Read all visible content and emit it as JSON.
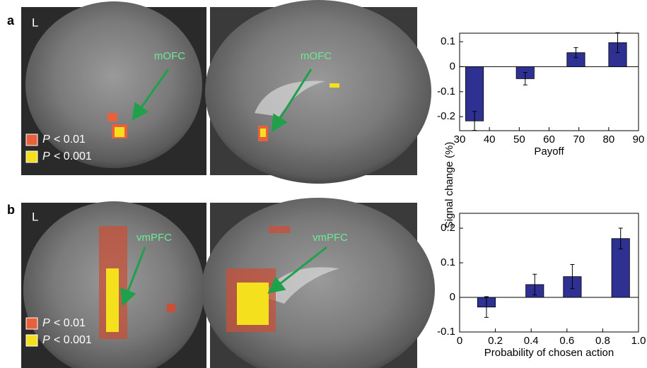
{
  "panels": [
    {
      "label": "a",
      "side": "L",
      "region": "mOFC",
      "legend": [
        {
          "symbol": "P",
          "text": "< 0.01",
          "color": "#e8603c"
        },
        {
          "symbol": "P",
          "text": "< 0.001",
          "color": "#f4e01c"
        }
      ]
    },
    {
      "label": "b",
      "side": "L",
      "region": "vmPFC",
      "legend": [
        {
          "symbol": "P",
          "text": "< 0.01",
          "color": "#e8603c"
        },
        {
          "symbol": "P",
          "text": "< 0.001",
          "color": "#f4e01c"
        }
      ]
    }
  ],
  "y_label": "Signal change (%)",
  "chart_data": [
    {
      "type": "bar",
      "x_label": "Payoff",
      "x": [
        35,
        52,
        69,
        83
      ],
      "values": [
        -0.217,
        -0.048,
        0.056,
        0.096
      ],
      "errors": [
        0.038,
        0.025,
        0.02,
        0.04
      ],
      "color": "#2e3192",
      "xlim": [
        30,
        90
      ],
      "xticks": [
        30,
        40,
        50,
        60,
        70,
        80,
        90
      ],
      "ylim": [
        -0.256,
        0.134
      ],
      "yticks": [
        -0.2,
        -0.1,
        0,
        0.1
      ]
    },
    {
      "type": "bar",
      "x_label": "Probability of chosen action",
      "x": [
        0.15,
        0.42,
        0.63,
        0.9
      ],
      "values": [
        -0.028,
        0.037,
        0.06,
        0.17
      ],
      "errors": [
        0.03,
        0.03,
        0.035,
        0.03
      ],
      "color": "#2e3192",
      "xlim": [
        0,
        1
      ],
      "xticks": [
        0,
        0.2,
        0.4,
        0.6,
        0.8,
        {
          "value": 1,
          "label": "1.0"
        }
      ],
      "ylim": [
        -0.1,
        0.243
      ],
      "yticks": [
        -0.1,
        0,
        0.1,
        0.2
      ]
    }
  ]
}
